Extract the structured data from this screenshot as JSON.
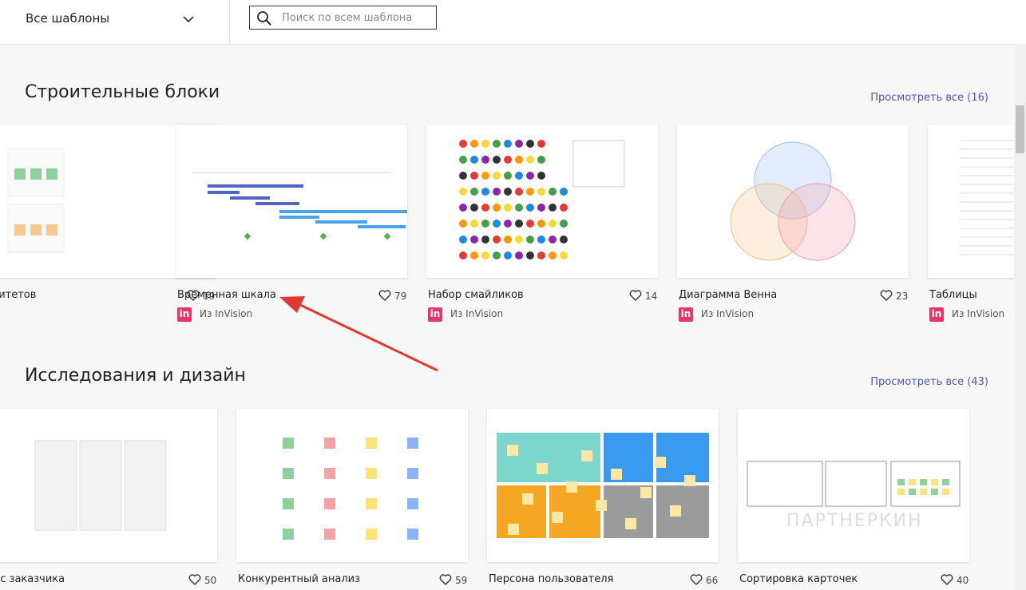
{
  "topbar": {
    "dropdown": "Все шаблоны",
    "search_placeholder": "Поиск по всем шаблона"
  },
  "source_logo": "in",
  "sections": [
    {
      "title": "Строительные блоки",
      "view_all": "Просмотреть все (16)",
      "cards": [
        {
          "title": "оритетов",
          "likes": 19
        },
        {
          "title": "Временная шкала",
          "likes": 79,
          "source": "Из InVision"
        },
        {
          "title": "Набор смайликов",
          "likes": 14,
          "source": "Из InVision"
        },
        {
          "title": "Диаграмма Венна",
          "likes": 23,
          "source": "Из InVision"
        },
        {
          "title": "Таблицы",
          "source": "Из InVision"
        }
      ]
    },
    {
      "title": "Исследования и дизайн",
      "view_all": "Просмотреть все (43)",
      "cards": [
        {
          "title": "лос заказчика",
          "likes": 50
        },
        {
          "title": "Конкурентный анализ",
          "likes": 59
        },
        {
          "title": "Персона пользователя",
          "likes": 66
        },
        {
          "title": "Сортировка карточек",
          "likes": 40
        }
      ]
    }
  ],
  "watermark": "ПАРТНЕРКИН"
}
